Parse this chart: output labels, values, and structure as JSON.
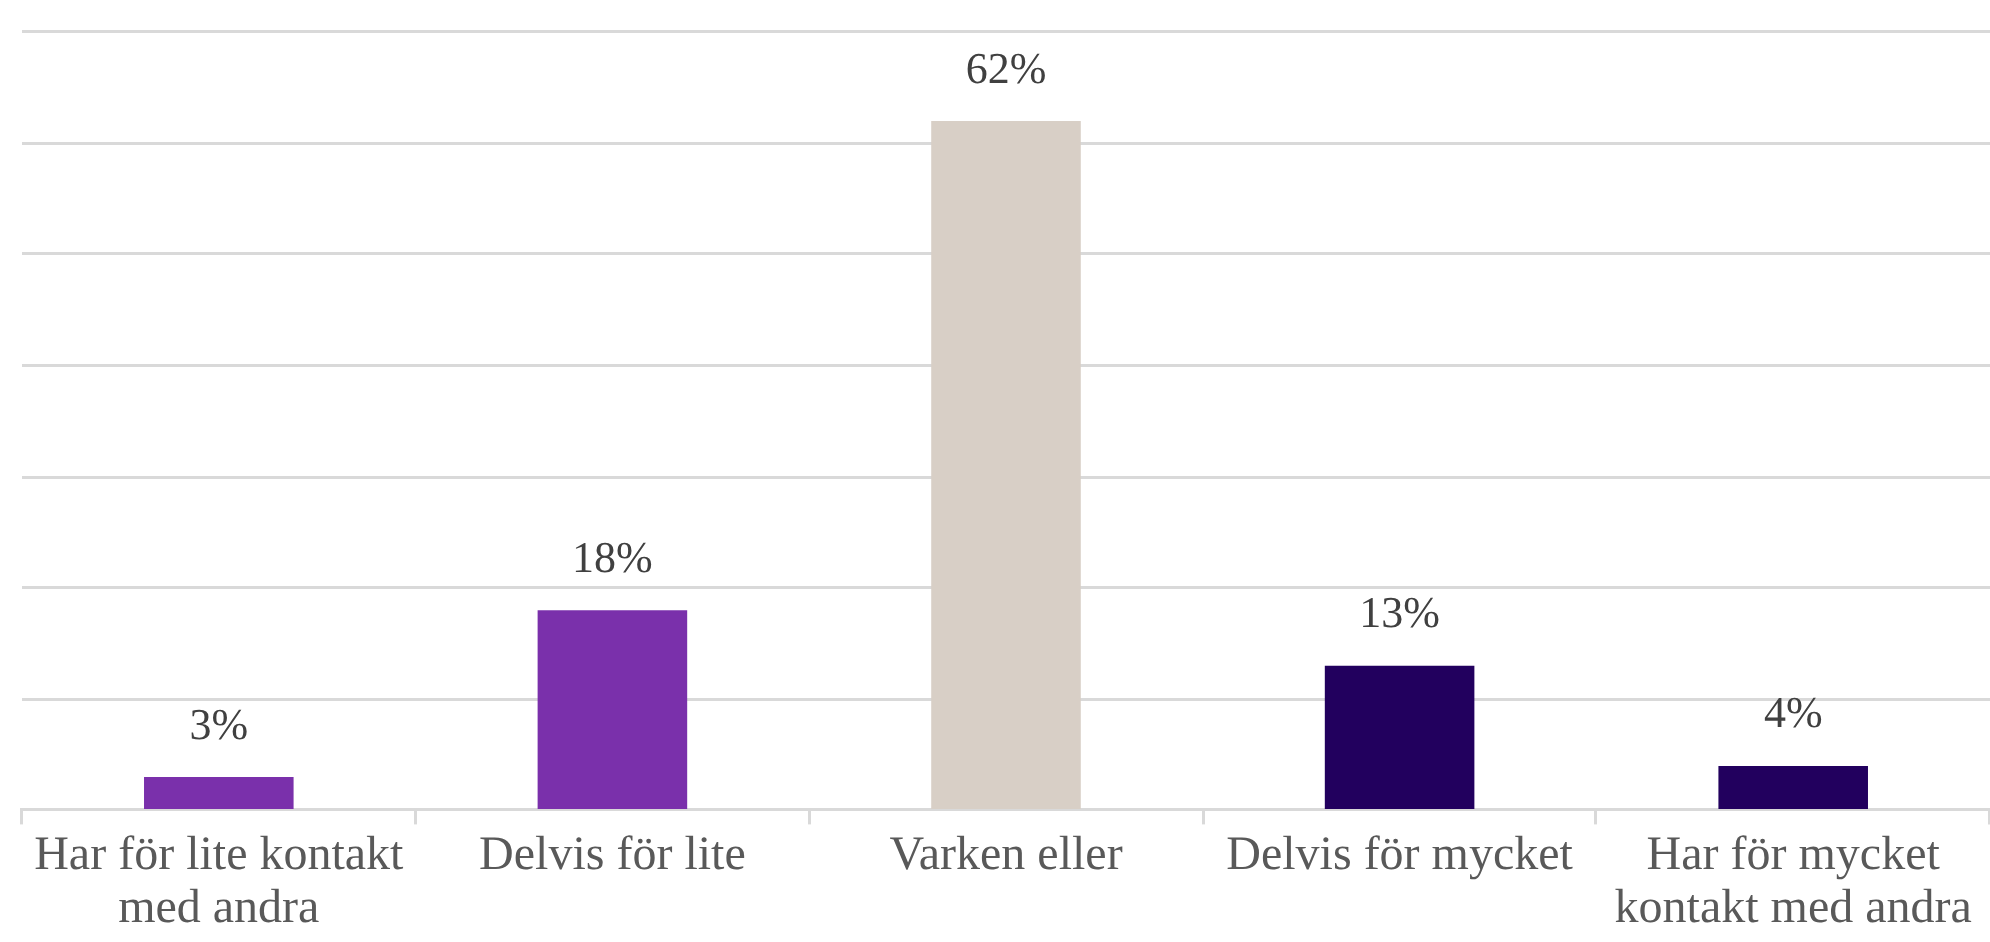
{
  "chart_data": {
    "type": "bar",
    "categories": [
      "Har för lite kontakt med andra",
      "Delvis för lite",
      "Varken eller",
      "Delvis för mycket",
      "Har för mycket kontakt med andra"
    ],
    "values": [
      3,
      18,
      62,
      13,
      4
    ],
    "colors": [
      "#7a30ab",
      "#7a30ab",
      "#d8cfc6",
      "#22005e",
      "#22005e"
    ],
    "value_labels": [
      "3%",
      "18%",
      "62%",
      "13%",
      "4%"
    ],
    "ylim": [
      0,
      70
    ],
    "yticks": [
      {
        "value": 0,
        "label": null
      },
      {
        "value": 10,
        "label": null
      },
      {
        "value": 20,
        "label": null
      },
      {
        "value": 30,
        "label": null
      },
      {
        "value": 40,
        "label": null
      },
      {
        "value": 50,
        "label": null
      },
      {
        "value": 60,
        "label": null
      },
      {
        "value": 70,
        "label": null
      }
    ],
    "grid": "y",
    "tick_labels": "x"
  }
}
